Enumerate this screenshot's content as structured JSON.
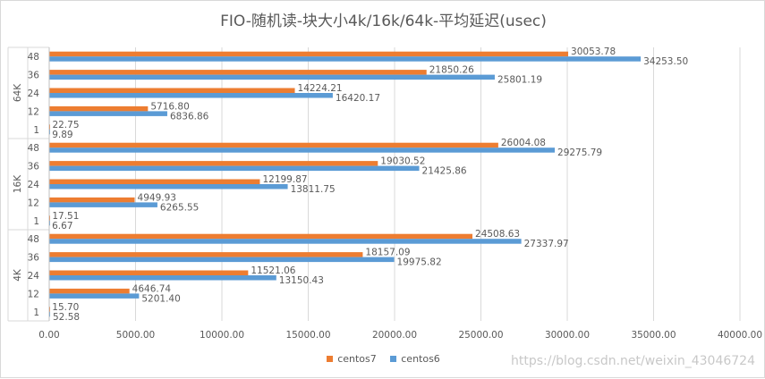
{
  "chart_data": {
    "type": "bar",
    "orientation": "horizontal",
    "title": "FIO-随机读-块大小4k/16k/64k-平均延迟(usec)",
    "groups": [
      {
        "label": "64K",
        "categories": [
          "48",
          "36",
          "24",
          "12",
          "1"
        ],
        "series": [
          {
            "name": "centos7",
            "values": [
              30053.78,
              21850.26,
              14224.21,
              5716.8,
              22.75
            ]
          },
          {
            "name": "centos6",
            "values": [
              34253.5,
              25801.19,
              16420.17,
              6836.86,
              9.89
            ]
          }
        ]
      },
      {
        "label": "16K",
        "categories": [
          "48",
          "36",
          "24",
          "12",
          "1"
        ],
        "series": [
          {
            "name": "centos7",
            "values": [
              26004.08,
              19030.52,
              12199.87,
              4949.93,
              17.51
            ]
          },
          {
            "name": "centos6",
            "values": [
              29275.79,
              21425.86,
              13811.75,
              6265.55,
              6.67
            ]
          }
        ]
      },
      {
        "label": "4K",
        "categories": [
          "48",
          "36",
          "24",
          "12",
          "1"
        ],
        "series": [
          {
            "name": "centos7",
            "values": [
              24508.63,
              18157.09,
              11521.06,
              4646.74,
              15.7
            ]
          },
          {
            "name": "centos6",
            "values": [
              27337.97,
              19975.82,
              13150.43,
              5201.4,
              52.58
            ]
          }
        ]
      }
    ],
    "xlim": [
      0,
      40000
    ],
    "xticks": [
      "0.00",
      "5000.00",
      "10000.00",
      "15000.00",
      "20000.00",
      "25000.00",
      "30000.00",
      "35000.00",
      "40000.00"
    ],
    "xtick_values": [
      0,
      5000,
      10000,
      15000,
      20000,
      25000,
      30000,
      35000,
      40000
    ],
    "grid": true,
    "legend": "bottom",
    "colors": {
      "centos7": "#ed7d31",
      "centos6": "#5b9bd5",
      "grid": "#d9d9d9",
      "text": "#595959"
    }
  },
  "legend": {
    "centos7": "centos7",
    "centos6": "centos6"
  },
  "watermark": "https://blog.csdn.net/weixin_43046724"
}
